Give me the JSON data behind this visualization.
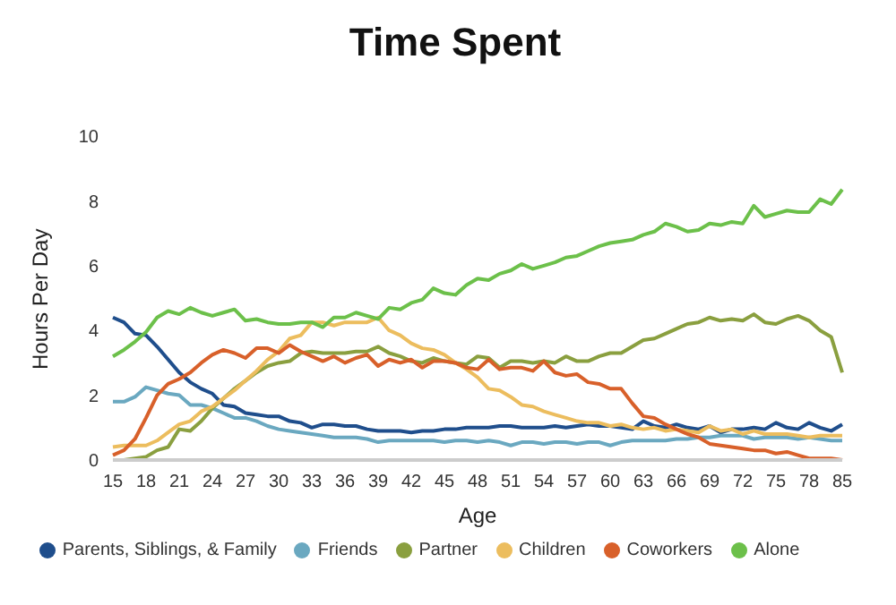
{
  "chart_data": {
    "type": "line",
    "title": "Time Spent",
    "xlabel": "Age",
    "ylabel": "Hours Per Day",
    "categories": [
      "15",
      null,
      null,
      "18",
      null,
      null,
      "21",
      null,
      null,
      "24",
      null,
      null,
      "27",
      null,
      null,
      "30",
      null,
      null,
      "33",
      null,
      null,
      "36",
      null,
      null,
      "39",
      null,
      null,
      "42",
      null,
      null,
      "45",
      null,
      null,
      "48",
      null,
      null,
      "51",
      null,
      null,
      "54",
      null,
      null,
      "57",
      null,
      null,
      "60",
      null,
      null,
      "63",
      null,
      null,
      "66",
      null,
      null,
      "69",
      null,
      null,
      "72",
      null,
      null,
      "75",
      null,
      null,
      "78",
      null,
      null,
      "85"
    ],
    "series": [
      {
        "name": "Parents, Siblings, & Family",
        "color": "#1f4e8c",
        "values": [
          4.4,
          4.25,
          3.9,
          3.85,
          3.5,
          3.1,
          2.7,
          2.4,
          2.2,
          2.05,
          1.7,
          1.65,
          1.45,
          1.4,
          1.35,
          1.35,
          1.2,
          1.15,
          1.0,
          1.1,
          1.1,
          1.05,
          1.05,
          0.95,
          0.9,
          0.9,
          0.9,
          0.85,
          0.9,
          0.9,
          0.95,
          0.95,
          1.0,
          1.0,
          1.0,
          1.05,
          1.05,
          1.0,
          1.0,
          1.0,
          1.05,
          1.0,
          1.05,
          1.1,
          1.05,
          1.05,
          1.0,
          0.95,
          1.2,
          1.05,
          1.0,
          1.1,
          1.0,
          0.95,
          1.05,
          0.85,
          0.95,
          0.95,
          1.0,
          0.95,
          1.15,
          1.0,
          0.95,
          1.15,
          1.0,
          0.9,
          1.1
        ]
      },
      {
        "name": "Friends",
        "color": "#6aa8c0",
        "values": [
          1.8,
          1.8,
          1.95,
          2.25,
          2.15,
          2.05,
          2.0,
          1.7,
          1.7,
          1.6,
          1.45,
          1.3,
          1.3,
          1.2,
          1.05,
          0.95,
          0.9,
          0.85,
          0.8,
          0.75,
          0.7,
          0.7,
          0.7,
          0.65,
          0.55,
          0.6,
          0.6,
          0.6,
          0.6,
          0.6,
          0.55,
          0.6,
          0.6,
          0.55,
          0.6,
          0.55,
          0.45,
          0.55,
          0.55,
          0.5,
          0.55,
          0.55,
          0.5,
          0.55,
          0.55,
          0.45,
          0.55,
          0.6,
          0.6,
          0.6,
          0.6,
          0.65,
          0.65,
          0.7,
          0.7,
          0.75,
          0.75,
          0.75,
          0.65,
          0.7,
          0.7,
          0.7,
          0.65,
          0.7,
          0.65,
          0.6,
          0.6
        ]
      },
      {
        "name": "Partner",
        "color": "#8a9f3f",
        "values": [
          0.0,
          0.0,
          0.05,
          0.1,
          0.3,
          0.4,
          0.95,
          0.9,
          1.2,
          1.6,
          1.9,
          2.2,
          2.45,
          2.7,
          2.9,
          3.0,
          3.05,
          3.3,
          3.35,
          3.3,
          3.3,
          3.3,
          3.35,
          3.35,
          3.5,
          3.3,
          3.2,
          3.05,
          3.0,
          3.15,
          3.05,
          3.0,
          2.95,
          3.2,
          3.15,
          2.85,
          3.05,
          3.05,
          3.0,
          3.05,
          3.0,
          3.2,
          3.05,
          3.05,
          3.2,
          3.3,
          3.3,
          3.5,
          3.7,
          3.75,
          3.9,
          4.05,
          4.2,
          4.25,
          4.4,
          4.3,
          4.35,
          4.3,
          4.5,
          4.25,
          4.2,
          4.35,
          4.45,
          4.3,
          4.0,
          3.8,
          2.7
        ]
      },
      {
        "name": "Children",
        "color": "#ecbd5e",
        "values": [
          0.4,
          0.45,
          0.45,
          0.45,
          0.6,
          0.85,
          1.1,
          1.2,
          1.5,
          1.65,
          1.9,
          2.15,
          2.45,
          2.75,
          3.1,
          3.35,
          3.75,
          3.85,
          4.25,
          4.25,
          4.15,
          4.25,
          4.25,
          4.25,
          4.4,
          4.0,
          3.85,
          3.6,
          3.45,
          3.4,
          3.25,
          3.0,
          2.8,
          2.55,
          2.2,
          2.15,
          1.95,
          1.7,
          1.65,
          1.5,
          1.4,
          1.3,
          1.2,
          1.15,
          1.15,
          1.05,
          1.1,
          1.0,
          0.95,
          1.0,
          0.9,
          0.95,
          0.9,
          0.85,
          1.05,
          0.9,
          0.95,
          0.8,
          0.9,
          0.8,
          0.8,
          0.8,
          0.75,
          0.7,
          0.75,
          0.75,
          0.75
        ]
      },
      {
        "name": "Coworkers",
        "color": "#d8602a",
        "values": [
          0.15,
          0.3,
          0.65,
          1.3,
          2.0,
          2.35,
          2.5,
          2.7,
          3.0,
          3.25,
          3.4,
          3.3,
          3.15,
          3.45,
          3.45,
          3.3,
          3.55,
          3.35,
          3.2,
          3.05,
          3.2,
          3.0,
          3.15,
          3.25,
          2.9,
          3.1,
          3.0,
          3.1,
          2.85,
          3.05,
          3.05,
          3.0,
          2.85,
          2.8,
          3.1,
          2.8,
          2.85,
          2.85,
          2.75,
          3.05,
          2.7,
          2.6,
          2.65,
          2.4,
          2.35,
          2.2,
          2.2,
          1.75,
          1.35,
          1.3,
          1.1,
          0.95,
          0.8,
          0.7,
          0.5,
          0.45,
          0.4,
          0.35,
          0.3,
          0.3,
          0.2,
          0.25,
          0.15,
          0.05,
          0.05,
          0.05,
          0.0
        ]
      },
      {
        "name": "Alone",
        "color": "#6cc04a",
        "values": [
          3.2,
          3.4,
          3.65,
          3.95,
          4.4,
          4.6,
          4.5,
          4.7,
          4.55,
          4.45,
          4.55,
          4.65,
          4.3,
          4.35,
          4.25,
          4.2,
          4.2,
          4.25,
          4.25,
          4.1,
          4.4,
          4.4,
          4.55,
          4.45,
          4.35,
          4.7,
          4.65,
          4.85,
          4.95,
          5.3,
          5.15,
          5.1,
          5.4,
          5.6,
          5.55,
          5.75,
          5.85,
          6.05,
          5.9,
          6.0,
          6.1,
          6.25,
          6.3,
          6.45,
          6.6,
          6.7,
          6.75,
          6.8,
          6.95,
          7.05,
          7.3,
          7.2,
          7.05,
          7.1,
          7.3,
          7.25,
          7.35,
          7.3,
          7.85,
          7.5,
          7.6,
          7.7,
          7.65,
          7.65,
          8.05,
          7.9,
          8.35
        ]
      }
    ],
    "ylim": [
      0,
      10
    ],
    "yticks": [
      0,
      2,
      4,
      6,
      8,
      10
    ],
    "legend": "bottom",
    "marker": "none",
    "line_style": "solid",
    "grid": false
  }
}
